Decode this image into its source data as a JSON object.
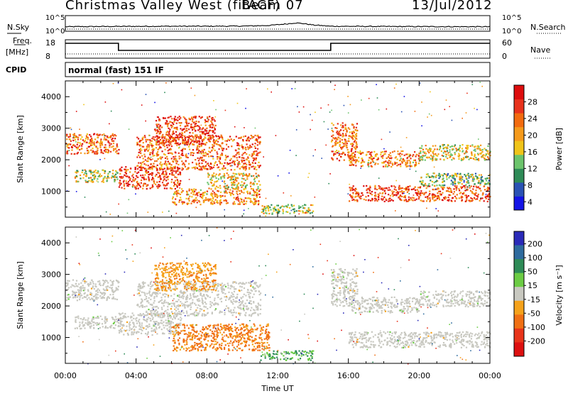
{
  "header": {
    "station": "Christmas Valley West (fitACF)",
    "beam": "Beam 07",
    "date": "13/Jul/2012"
  },
  "top_panels": {
    "nsky_label": "N.Sky",
    "nsearch_label": "N.Search",
    "noise_ticks": [
      "10^5",
      "10^0"
    ],
    "freq_label": "Freq.",
    "freq_unit": "[MHz]",
    "freq_ticks": [
      "18",
      "8"
    ],
    "nave_label": "Nave",
    "nave_ticks": [
      "60",
      "0"
    ],
    "cpid_label": "CPID",
    "cpid_value": "normal (fast) 151 IF"
  },
  "colors": {
    "power": [
      "#1414e6",
      "#2a52b4",
      "#2e8b57",
      "#6cc46c",
      "#f0c419",
      "#f59a1b",
      "#f26b0f",
      "#e8321c",
      "#dd0d0d"
    ],
    "velocity": [
      "#2a2ab8",
      "#2e6b9e",
      "#2e8b57",
      "#6ccc44",
      "#c8c8c0",
      "#f5a21b",
      "#f07014",
      "#e8341a",
      "#dd1010"
    ],
    "ground_scatter": "#c8c8c0"
  },
  "chart_data": [
    {
      "type": "heatmap",
      "title": "Power",
      "xlabel": "Time UT",
      "ylabel": "Slant Range [km]",
      "x_ticks": [
        "00:00",
        "04:00",
        "08:00",
        "12:00",
        "16:00",
        "20:00",
        "00:00"
      ],
      "xlim_hours": [
        0,
        24
      ],
      "ylim_km": [
        180,
        4500
      ],
      "y_ticks": [
        1000,
        2000,
        3000,
        4000
      ],
      "colorbar": {
        "label": "Power [dB]",
        "ticks": [
          "28",
          "24",
          "20",
          "16",
          "12",
          "8",
          "4"
        ],
        "range": [
          0,
          30
        ]
      },
      "scatter_regions": [
        {
          "t": [
            0,
            3
          ],
          "r": [
            2200,
            2850
          ],
          "level": 22
        },
        {
          "t": [
            0.5,
            3
          ],
          "r": [
            1300,
            1700
          ],
          "level": 14
        },
        {
          "t": [
            3,
            6.5
          ],
          "r": [
            1100,
            1800
          ],
          "level": 25
        },
        {
          "t": [
            4,
            11
          ],
          "r": [
            1700,
            2800
          ],
          "level": 22
        },
        {
          "t": [
            5,
            8.5
          ],
          "r": [
            2500,
            3400
          ],
          "level": 25
        },
        {
          "t": [
            6,
            11
          ],
          "r": [
            600,
            1100
          ],
          "level": 20
        },
        {
          "t": [
            8,
            11
          ],
          "r": [
            1100,
            1600
          ],
          "level": 16
        },
        {
          "t": [
            11,
            14
          ],
          "r": [
            300,
            600
          ],
          "level": 14
        },
        {
          "t": [
            15,
            16.5
          ],
          "r": [
            2000,
            3200
          ],
          "level": 22
        },
        {
          "t": [
            16,
            20
          ],
          "r": [
            1800,
            2300
          ],
          "level": 20
        },
        {
          "t": [
            16,
            24
          ],
          "r": [
            700,
            1200
          ],
          "level": 24
        },
        {
          "t": [
            20,
            24
          ],
          "r": [
            1200,
            1600
          ],
          "level": 12
        },
        {
          "t": [
            20,
            24
          ],
          "r": [
            2000,
            2500
          ],
          "level": 16
        }
      ]
    },
    {
      "type": "heatmap",
      "title": "Velocity",
      "xlabel": "Time UT",
      "ylabel": "Slant Range [km]",
      "x_ticks": [
        "00:00",
        "04:00",
        "08:00",
        "12:00",
        "16:00",
        "20:00",
        "00:00"
      ],
      "xlim_hours": [
        0,
        24
      ],
      "ylim_km": [
        180,
        4500
      ],
      "y_ticks": [
        1000,
        2000,
        3000,
        4000
      ],
      "colorbar": {
        "label": "Velocity [m s⁻¹]",
        "ticks": [
          "200",
          "100",
          "50",
          "15",
          "-15",
          "-50",
          "-100",
          "-200"
        ],
        "range": [
          -250,
          250
        ]
      },
      "scatter_regions": [
        {
          "t": [
            0,
            3
          ],
          "r": [
            2200,
            2850
          ],
          "v": 0
        },
        {
          "t": [
            0.5,
            3
          ],
          "r": [
            1300,
            1700
          ],
          "v": 0
        },
        {
          "t": [
            3,
            6.5
          ],
          "r": [
            1100,
            1800
          ],
          "v": 0
        },
        {
          "t": [
            4,
            11
          ],
          "r": [
            1700,
            2800
          ],
          "v": 0
        },
        {
          "t": [
            5,
            8.5
          ],
          "r": [
            2500,
            3400
          ],
          "v": -40
        },
        {
          "t": [
            6,
            11.5
          ],
          "r": [
            600,
            1450
          ],
          "v": -60
        },
        {
          "t": [
            11,
            14
          ],
          "r": [
            300,
            600
          ],
          "v": 30
        },
        {
          "t": [
            15,
            16.5
          ],
          "r": [
            2000,
            3200
          ],
          "v": 0
        },
        {
          "t": [
            16,
            20
          ],
          "r": [
            1800,
            2300
          ],
          "v": 0
        },
        {
          "t": [
            16,
            24
          ],
          "r": [
            700,
            1200
          ],
          "v": 0
        },
        {
          "t": [
            20,
            24
          ],
          "r": [
            2000,
            2500
          ],
          "v": 0
        }
      ]
    },
    {
      "type": "line",
      "title": "N.Sky",
      "x_hours": [
        0,
        2,
        4,
        6,
        8,
        10,
        11.5,
        12.5,
        13,
        13.5,
        14,
        15,
        18,
        21,
        24
      ],
      "values_log10": [
        1.2,
        1.3,
        1.35,
        1.4,
        1.4,
        1.45,
        1.7,
        2.3,
        2.7,
        2.4,
        1.9,
        1.4,
        1.3,
        1.25,
        1.2
      ]
    },
    {
      "type": "line",
      "title": "Freq.",
      "segments": [
        {
          "t": [
            0,
            3
          ],
          "mhz": 17
        },
        {
          "t": [
            3,
            15
          ],
          "mhz": 12
        },
        {
          "t": [
            15,
            24
          ],
          "mhz": 17
        }
      ]
    }
  ]
}
